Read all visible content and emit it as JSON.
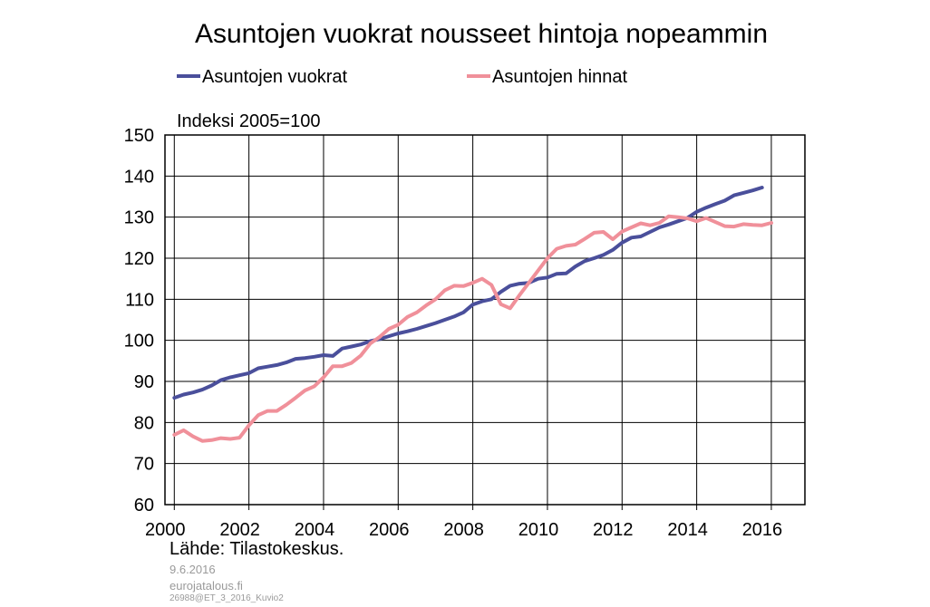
{
  "chart_data": {
    "type": "line",
    "title": "Asuntojen vuokrat nousseet hintoja nopeammin",
    "ylabel": "Indeksi  2005=100",
    "ylim": [
      60,
      150
    ],
    "xlim": [
      1999.75,
      2016.9
    ],
    "yticks": [
      60,
      70,
      80,
      90,
      100,
      110,
      120,
      130,
      140,
      150
    ],
    "xticks": [
      "2000",
      "2002",
      "2004",
      "2006",
      "2008",
      "2010",
      "2012",
      "2014",
      "2016"
    ],
    "grid": true,
    "legend_position": "top",
    "series": [
      {
        "name": "Asuntojen vuokrat",
        "color": "#4a4f9b",
        "points": [
          [
            2000.0,
            86
          ],
          [
            2000.25,
            86.8
          ],
          [
            2000.5,
            87.3
          ],
          [
            2000.75,
            88
          ],
          [
            2001.0,
            89
          ],
          [
            2001.25,
            90.3
          ],
          [
            2001.5,
            91
          ],
          [
            2001.75,
            91.5
          ],
          [
            2002.0,
            92
          ],
          [
            2002.25,
            93.2
          ],
          [
            2002.5,
            93.6
          ],
          [
            2002.75,
            94
          ],
          [
            2003.0,
            94.6
          ],
          [
            2003.25,
            95.5
          ],
          [
            2003.5,
            95.7
          ],
          [
            2003.75,
            96
          ],
          [
            2004.0,
            96.4
          ],
          [
            2004.25,
            96.2
          ],
          [
            2004.5,
            98
          ],
          [
            2004.75,
            98.5
          ],
          [
            2005.0,
            99
          ],
          [
            2005.25,
            99.8
          ],
          [
            2005.5,
            100.3
          ],
          [
            2005.75,
            101
          ],
          [
            2006.0,
            101.7
          ],
          [
            2006.25,
            102.2
          ],
          [
            2006.5,
            102.8
          ],
          [
            2006.75,
            103.5
          ],
          [
            2007.0,
            104.2
          ],
          [
            2007.25,
            105
          ],
          [
            2007.5,
            105.8
          ],
          [
            2007.75,
            106.8
          ],
          [
            2008.0,
            108.7
          ],
          [
            2008.25,
            109.5
          ],
          [
            2008.5,
            110
          ],
          [
            2008.75,
            111.8
          ],
          [
            2009.0,
            113.3
          ],
          [
            2009.25,
            113.8
          ],
          [
            2009.5,
            114
          ],
          [
            2009.75,
            115
          ],
          [
            2010.0,
            115.3
          ],
          [
            2010.25,
            116.2
          ],
          [
            2010.5,
            116.3
          ],
          [
            2010.75,
            118
          ],
          [
            2011.0,
            119.3
          ],
          [
            2011.25,
            120
          ],
          [
            2011.5,
            120.8
          ],
          [
            2011.75,
            122
          ],
          [
            2012.0,
            123.8
          ],
          [
            2012.25,
            125
          ],
          [
            2012.5,
            125.3
          ],
          [
            2012.75,
            126.4
          ],
          [
            2013.0,
            127.5
          ],
          [
            2013.25,
            128.2
          ],
          [
            2013.5,
            129
          ],
          [
            2013.75,
            129.8
          ],
          [
            2014.0,
            131.3
          ],
          [
            2014.25,
            132.3
          ],
          [
            2014.5,
            133.2
          ],
          [
            2014.75,
            134
          ],
          [
            2015.0,
            135.3
          ],
          [
            2015.25,
            135.9
          ],
          [
            2015.5,
            136.5
          ],
          [
            2015.75,
            137.2
          ]
        ]
      },
      {
        "name": "Asuntojen hinnat",
        "color": "#f0909a",
        "points": [
          [
            2000.0,
            77
          ],
          [
            2000.25,
            78.1
          ],
          [
            2000.5,
            76.6
          ],
          [
            2000.75,
            75.5
          ],
          [
            2001.0,
            75.7
          ],
          [
            2001.25,
            76.2
          ],
          [
            2001.5,
            76
          ],
          [
            2001.75,
            76.3
          ],
          [
            2002.0,
            79.3
          ],
          [
            2002.25,
            81.8
          ],
          [
            2002.5,
            82.8
          ],
          [
            2002.75,
            82.8
          ],
          [
            2003.0,
            84.3
          ],
          [
            2003.25,
            86
          ],
          [
            2003.5,
            87.8
          ],
          [
            2003.75,
            88.8
          ],
          [
            2004.0,
            91
          ],
          [
            2004.25,
            93.7
          ],
          [
            2004.5,
            93.7
          ],
          [
            2004.75,
            94.5
          ],
          [
            2005.0,
            96.3
          ],
          [
            2005.25,
            99.2
          ],
          [
            2005.5,
            100.8
          ],
          [
            2005.75,
            102.8
          ],
          [
            2006.0,
            103.8
          ],
          [
            2006.25,
            105.7
          ],
          [
            2006.5,
            106.8
          ],
          [
            2006.75,
            108.5
          ],
          [
            2007.0,
            110
          ],
          [
            2007.25,
            112.2
          ],
          [
            2007.5,
            113.3
          ],
          [
            2007.75,
            113.2
          ],
          [
            2008.0,
            114
          ],
          [
            2008.25,
            115
          ],
          [
            2008.5,
            113.5
          ],
          [
            2008.75,
            108.8
          ],
          [
            2009.0,
            107.8
          ],
          [
            2009.25,
            111
          ],
          [
            2009.5,
            114
          ],
          [
            2009.75,
            117
          ],
          [
            2010.0,
            120
          ],
          [
            2010.25,
            122.3
          ],
          [
            2010.5,
            123
          ],
          [
            2010.75,
            123.3
          ],
          [
            2011.0,
            124.7
          ],
          [
            2011.25,
            126.2
          ],
          [
            2011.5,
            126.4
          ],
          [
            2011.75,
            124.6
          ],
          [
            2012.0,
            126.5
          ],
          [
            2012.25,
            127.5
          ],
          [
            2012.5,
            128.5
          ],
          [
            2012.75,
            128
          ],
          [
            2013.0,
            128.6
          ],
          [
            2013.25,
            130.2
          ],
          [
            2013.5,
            130
          ],
          [
            2013.75,
            129.7
          ],
          [
            2014.0,
            129
          ],
          [
            2014.25,
            129.8
          ],
          [
            2014.5,
            128.8
          ],
          [
            2014.75,
            127.8
          ],
          [
            2015.0,
            127.7
          ],
          [
            2015.25,
            128.3
          ],
          [
            2015.5,
            128.1
          ],
          [
            2015.75,
            128
          ],
          [
            2016.0,
            128.6
          ]
        ]
      }
    ]
  },
  "source": "Lähde:  Tilastokeskus.",
  "footer": {
    "date": "9.6.2016",
    "site": "eurojatalous.fi",
    "code": "26988@ET_3_2016_Kuvio2"
  }
}
